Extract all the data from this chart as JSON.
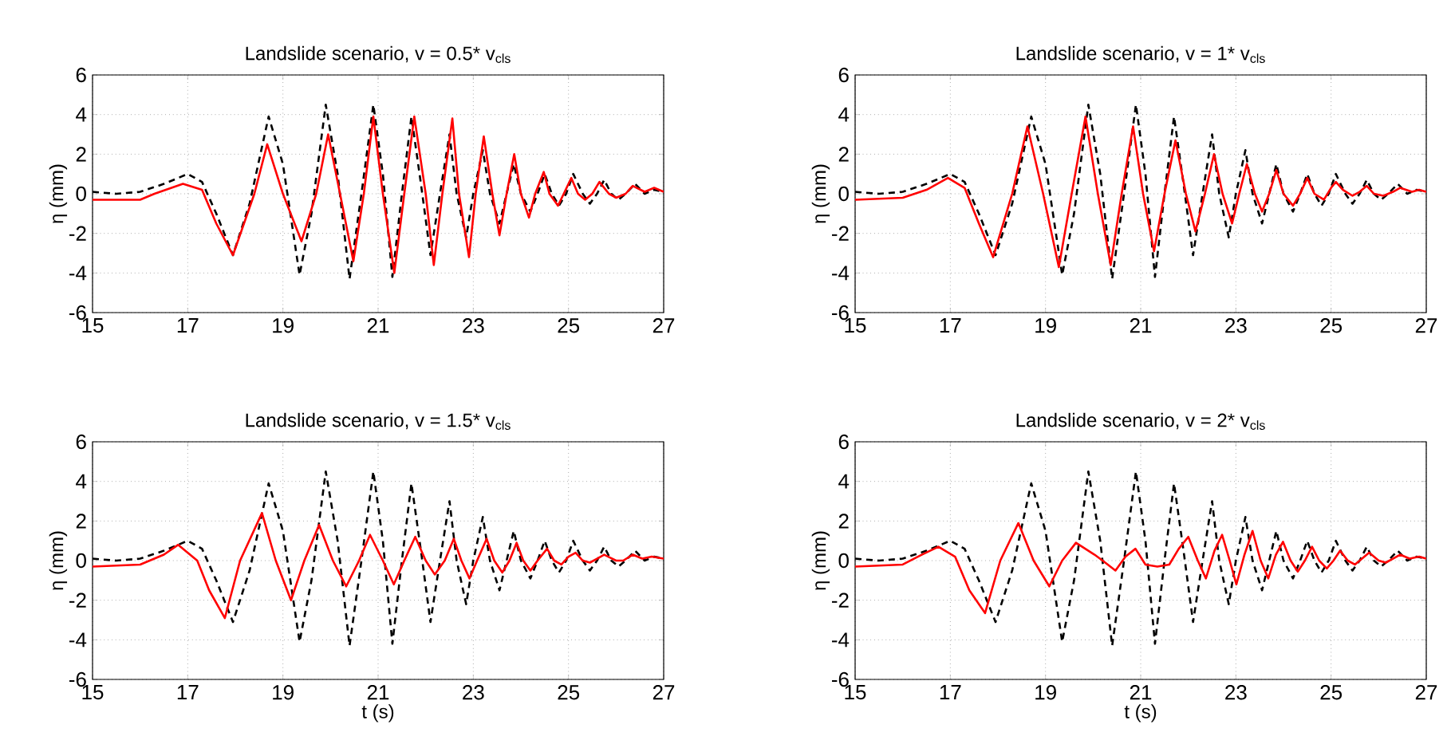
{
  "chart_data": [
    {
      "type": "line",
      "title": "Landslide scenario, v = 0.5* v$_{cls}$",
      "ylabel": "η (mm)",
      "xlim": [
        15,
        27
      ],
      "ylim": [
        -6,
        6
      ],
      "xticks": [
        15,
        17,
        19,
        21,
        23,
        25,
        27
      ],
      "yticks": [
        -6,
        -4,
        -2,
        0,
        2,
        4,
        6
      ],
      "grid": true,
      "series": [
        {
          "color": "#000000",
          "line_style": "dashed",
          "x": [
            15,
            15.5,
            16,
            16.5,
            17,
            17.3,
            17.6,
            17.95,
            18.3,
            18.7,
            19.0,
            19.35,
            19.6,
            19.9,
            20.15,
            20.4,
            20.65,
            20.9,
            21.1,
            21.3,
            21.5,
            21.7,
            21.9,
            22.1,
            22.3,
            22.5,
            22.65,
            22.85,
            23.0,
            23.2,
            23.35,
            23.55,
            23.7,
            23.85,
            24.0,
            24.2,
            24.35,
            24.5,
            24.65,
            24.8,
            24.95,
            25.1,
            25.3,
            25.45,
            25.6,
            25.75,
            25.9,
            26.05,
            26.2,
            26.4,
            26.6,
            26.8,
            27
          ],
          "values": [
            0.1,
            0,
            0.1,
            0.5,
            1.0,
            0.6,
            -1,
            -3.1,
            -0.5,
            3.9,
            1.5,
            -4.1,
            -1,
            4.5,
            1,
            -4.3,
            0,
            4.5,
            1,
            -4.2,
            0,
            3.9,
            0.5,
            -3.1,
            0,
            3.0,
            0,
            -2.2,
            0,
            2.2,
            0,
            -1.5,
            0,
            1.5,
            0,
            -0.9,
            0,
            1.0,
            0,
            -0.6,
            0,
            1.0,
            0,
            -0.5,
            0,
            0.7,
            0,
            -0.3,
            0,
            0.5,
            0,
            0.2,
            0.1
          ]
        },
        {
          "color": "#ff0000",
          "line_style": "solid",
          "x": [
            15,
            16,
            16.3,
            16.9,
            17.3,
            17.6,
            17.95,
            18.4,
            18.67,
            19.0,
            19.39,
            19.7,
            19.95,
            20.2,
            20.48,
            20.7,
            20.9,
            21.1,
            21.34,
            21.55,
            21.76,
            22.0,
            22.17,
            22.35,
            22.56,
            22.7,
            22.91,
            23.05,
            23.22,
            23.4,
            23.55,
            23.7,
            23.86,
            24.0,
            24.17,
            24.3,
            24.48,
            24.6,
            24.78,
            24.9,
            25.06,
            25.2,
            25.35,
            25.5,
            25.65,
            25.85,
            26.0,
            26.2,
            26.35,
            26.6,
            26.8,
            27
          ],
          "values": [
            -0.3,
            -0.3,
            0,
            0.5,
            0.2,
            -1.5,
            -3.1,
            0,
            2.5,
            0,
            -2.4,
            0,
            3.0,
            0,
            -3.4,
            0,
            3.9,
            0,
            -4.0,
            0,
            3.9,
            0,
            -3.6,
            0,
            3.8,
            0,
            -3.2,
            0,
            2.9,
            0,
            -2.1,
            0,
            2.0,
            0,
            -1.2,
            0,
            1.1,
            0,
            -0.6,
            0,
            0.8,
            0,
            -0.3,
            0,
            0.6,
            0,
            -0.2,
            0,
            0.4,
            0.1,
            0.3,
            0.1
          ]
        }
      ]
    },
    {
      "type": "line",
      "title": "Landslide scenario, v = 1* v$_{cls}$",
      "ylabel": "η (mm)",
      "xlim": [
        15,
        27
      ],
      "ylim": [
        -6,
        6
      ],
      "xticks": [
        15,
        17,
        19,
        21,
        23,
        25,
        27
      ],
      "yticks": [
        -6,
        -4,
        -2,
        0,
        2,
        4,
        6
      ],
      "grid": true,
      "series": [
        {
          "color": "#000000",
          "line_style": "dashed",
          "x": [
            15,
            15.5,
            16,
            16.5,
            17,
            17.3,
            17.6,
            17.95,
            18.3,
            18.7,
            19.0,
            19.35,
            19.6,
            19.9,
            20.15,
            20.4,
            20.65,
            20.9,
            21.1,
            21.3,
            21.5,
            21.7,
            21.9,
            22.1,
            22.3,
            22.5,
            22.65,
            22.85,
            23.0,
            23.2,
            23.35,
            23.55,
            23.7,
            23.85,
            24.0,
            24.2,
            24.35,
            24.5,
            24.65,
            24.8,
            24.95,
            25.1,
            25.3,
            25.45,
            25.6,
            25.75,
            25.9,
            26.05,
            26.2,
            26.4,
            26.6,
            26.8,
            27
          ],
          "values": [
            0.1,
            0,
            0.1,
            0.5,
            1.0,
            0.6,
            -1,
            -3.1,
            -0.5,
            3.9,
            1.5,
            -4.1,
            -1,
            4.5,
            1,
            -4.3,
            0,
            4.5,
            1,
            -4.2,
            0,
            3.9,
            0.5,
            -3.1,
            0,
            3.0,
            0,
            -2.2,
            0,
            2.2,
            0,
            -1.5,
            0,
            1.5,
            0,
            -0.9,
            0,
            1.0,
            0,
            -0.6,
            0,
            1.0,
            0,
            -0.5,
            0,
            0.7,
            0,
            -0.3,
            0,
            0.5,
            0,
            0.2,
            0.1
          ]
        },
        {
          "color": "#ff0000",
          "line_style": "solid",
          "x": [
            15,
            16,
            16.5,
            16.95,
            17.3,
            17.6,
            17.9,
            18.3,
            18.62,
            18.95,
            19.28,
            19.55,
            19.84,
            20.1,
            20.37,
            20.6,
            20.84,
            21.05,
            21.28,
            21.5,
            21.73,
            21.95,
            22.15,
            22.35,
            22.54,
            22.72,
            22.92,
            23.07,
            23.23,
            23.4,
            23.55,
            23.7,
            23.85,
            24.0,
            24.2,
            24.35,
            24.5,
            24.65,
            24.85,
            25.0,
            25.1,
            25.25,
            25.45,
            25.6,
            25.75,
            25.9,
            26.1,
            26.3,
            26.45,
            26.7,
            26.85,
            27
          ],
          "values": [
            -0.3,
            -0.2,
            0.2,
            0.8,
            0.3,
            -1.5,
            -3.2,
            0,
            3.4,
            0,
            -3.7,
            0,
            3.9,
            0,
            -3.6,
            0,
            3.4,
            0,
            -2.9,
            0,
            2.7,
            0,
            -1.9,
            0,
            2.0,
            0,
            -1.5,
            0,
            1.5,
            0,
            -0.9,
            0,
            1.2,
            0,
            -0.6,
            0,
            0.8,
            0,
            -0.3,
            0.3,
            0.6,
            0.2,
            -0.1,
            0.1,
            0.4,
            0,
            -0.1,
            0.1,
            0.3,
            0.1,
            0.2,
            0.1
          ]
        }
      ]
    },
    {
      "type": "line",
      "title": "Landslide scenario, v = 1.5* v$_{cls}$",
      "xlabel": "t (s)",
      "ylabel": "η (mm)",
      "xlim": [
        15,
        27
      ],
      "ylim": [
        -6,
        6
      ],
      "xticks": [
        15,
        17,
        19,
        21,
        23,
        25,
        27
      ],
      "yticks": [
        -6,
        -4,
        -2,
        0,
        2,
        4,
        6
      ],
      "grid": true,
      "series": [
        {
          "color": "#000000",
          "line_style": "dashed",
          "x": [
            15,
            15.5,
            16,
            16.5,
            17,
            17.3,
            17.6,
            17.95,
            18.3,
            18.7,
            19.0,
            19.35,
            19.6,
            19.9,
            20.15,
            20.4,
            20.65,
            20.9,
            21.1,
            21.3,
            21.5,
            21.7,
            21.9,
            22.1,
            22.3,
            22.5,
            22.65,
            22.85,
            23.0,
            23.2,
            23.35,
            23.55,
            23.7,
            23.85,
            24.0,
            24.2,
            24.35,
            24.5,
            24.65,
            24.8,
            24.95,
            25.1,
            25.3,
            25.45,
            25.6,
            25.75,
            25.9,
            26.05,
            26.2,
            26.4,
            26.6,
            26.8,
            27
          ],
          "values": [
            0.1,
            0,
            0.1,
            0.5,
            1.0,
            0.6,
            -1,
            -3.1,
            -0.5,
            3.9,
            1.5,
            -4.1,
            -1,
            4.5,
            1,
            -4.3,
            0,
            4.5,
            1,
            -4.2,
            0,
            3.9,
            0.5,
            -3.1,
            0,
            3.0,
            0,
            -2.2,
            0,
            2.2,
            0,
            -1.5,
            0,
            1.5,
            0,
            -0.9,
            0,
            1.0,
            0,
            -0.6,
            0,
            1.0,
            0,
            -0.5,
            0,
            0.7,
            0,
            -0.3,
            0,
            0.5,
            0,
            0.2,
            0.1
          ]
        },
        {
          "color": "#ff0000",
          "line_style": "solid",
          "x": [
            15,
            16,
            16.5,
            16.8,
            17.2,
            17.45,
            17.78,
            18.1,
            18.56,
            18.85,
            19.17,
            19.45,
            19.76,
            20.05,
            20.33,
            20.6,
            20.83,
            21.1,
            21.33,
            21.55,
            21.78,
            22.0,
            22.19,
            22.4,
            22.59,
            22.75,
            22.92,
            23.08,
            23.28,
            23.44,
            23.61,
            23.76,
            23.91,
            24.05,
            24.2,
            24.35,
            24.55,
            24.7,
            24.85,
            25.0,
            25.15,
            25.3,
            25.45,
            25.6,
            25.75,
            26.0,
            26.15,
            26.35,
            26.55,
            26.75,
            27
          ],
          "values": [
            -0.3,
            -0.2,
            0.3,
            0.8,
            0,
            -1.5,
            -2.9,
            0,
            2.4,
            0,
            -2.0,
            0,
            1.8,
            0,
            -1.3,
            0,
            1.3,
            0,
            -1.2,
            0,
            1.2,
            0,
            -0.7,
            0,
            1.1,
            0,
            -0.9,
            0,
            1.1,
            0,
            -0.6,
            0,
            0.9,
            0,
            -0.5,
            0,
            0.6,
            0,
            -0.2,
            0.2,
            0.4,
            0,
            -0.1,
            0.1,
            0.3,
            0,
            0,
            0.3,
            0.1,
            0.2,
            0.1
          ]
        }
      ]
    },
    {
      "type": "line",
      "title": "Landslide scenario, v = 2* v$_{cls}$",
      "xlabel": "t (s)",
      "ylabel": "η (mm)",
      "xlim": [
        15,
        27
      ],
      "ylim": [
        -6,
        6
      ],
      "xticks": [
        15,
        17,
        19,
        21,
        23,
        25,
        27
      ],
      "yticks": [
        -6,
        -4,
        -2,
        0,
        2,
        4,
        6
      ],
      "grid": true,
      "series": [
        {
          "color": "#000000",
          "line_style": "dashed",
          "x": [
            15,
            15.5,
            16,
            16.5,
            17,
            17.3,
            17.6,
            17.95,
            18.3,
            18.7,
            19.0,
            19.35,
            19.6,
            19.9,
            20.15,
            20.4,
            20.65,
            20.9,
            21.1,
            21.3,
            21.5,
            21.7,
            21.9,
            22.1,
            22.3,
            22.5,
            22.65,
            22.85,
            23.0,
            23.2,
            23.35,
            23.55,
            23.7,
            23.85,
            24.0,
            24.2,
            24.35,
            24.5,
            24.65,
            24.8,
            24.95,
            25.1,
            25.3,
            25.45,
            25.6,
            25.75,
            25.9,
            26.05,
            26.2,
            26.4,
            26.6,
            26.8,
            27
          ],
          "values": [
            0.1,
            0,
            0.1,
            0.5,
            1.0,
            0.6,
            -1,
            -3.1,
            -0.5,
            3.9,
            1.5,
            -4.1,
            -1,
            4.5,
            1,
            -4.3,
            0,
            4.5,
            1,
            -4.2,
            0,
            3.9,
            0.5,
            -3.1,
            0,
            3.0,
            0,
            -2.2,
            0,
            2.2,
            0,
            -1.5,
            0,
            1.5,
            0,
            -0.9,
            0,
            1.0,
            0,
            -0.6,
            0,
            1.0,
            0,
            -0.5,
            0,
            0.7,
            0,
            -0.3,
            0,
            0.5,
            0,
            0.2,
            0.1
          ]
        },
        {
          "color": "#ff0000",
          "line_style": "solid",
          "x": [
            15,
            16,
            16.4,
            16.75,
            17.1,
            17.4,
            17.73,
            18.05,
            18.43,
            18.75,
            19.08,
            19.35,
            19.64,
            20.03,
            20.2,
            20.47,
            20.68,
            20.89,
            21.1,
            21.35,
            21.6,
            21.8,
            22.0,
            22.2,
            22.37,
            22.55,
            22.71,
            22.87,
            23.01,
            23.18,
            23.35,
            23.52,
            23.68,
            23.84,
            23.99,
            24.15,
            24.3,
            24.45,
            24.6,
            24.75,
            24.91,
            25.05,
            25.19,
            25.35,
            25.5,
            25.65,
            25.8,
            26.0,
            26.15,
            26.3,
            26.45,
            26.65,
            26.85,
            27
          ],
          "values": [
            -0.3,
            -0.2,
            0.3,
            0.7,
            0.2,
            -1.5,
            -2.65,
            0,
            1.9,
            0,
            -1.3,
            0,
            0.9,
            0.3,
            0,
            -0.5,
            0.2,
            0.6,
            -0.2,
            -0.3,
            -0.2,
            0.6,
            1.2,
            0,
            -0.9,
            0.5,
            1.3,
            0,
            -1.2,
            0.3,
            1.5,
            0,
            -0.9,
            0.3,
            0.95,
            0,
            -0.55,
            0,
            0.7,
            0,
            -0.4,
            0,
            0.5,
            0,
            -0.2,
            0.1,
            0.4,
            0,
            -0.1,
            0.1,
            0.3,
            0.1,
            0.2,
            0.1
          ]
        }
      ]
    }
  ]
}
